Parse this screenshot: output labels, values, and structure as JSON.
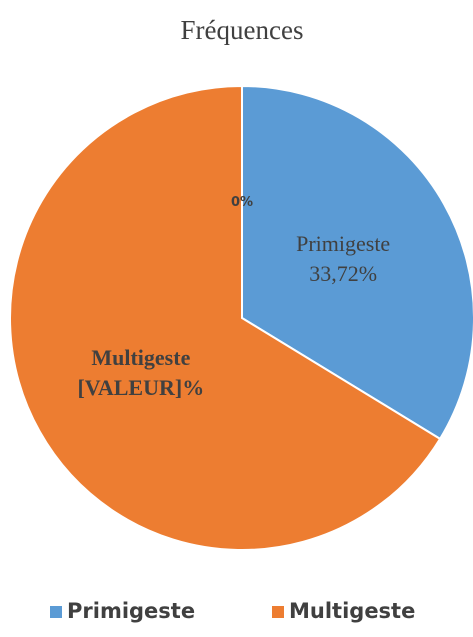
{
  "chart_data": {
    "type": "pie",
    "title": "Fréquences",
    "categories": [
      "Primigeste",
      "Multigeste",
      null
    ],
    "values": [
      33.72,
      66.28,
      0
    ],
    "value_labels": [
      "33,72%",
      "[VALEUR]%",
      "0%"
    ],
    "colors": [
      "#5b9bd5",
      "#ed7d31",
      "#a5a5a5"
    ],
    "legend": "bottom"
  }
}
